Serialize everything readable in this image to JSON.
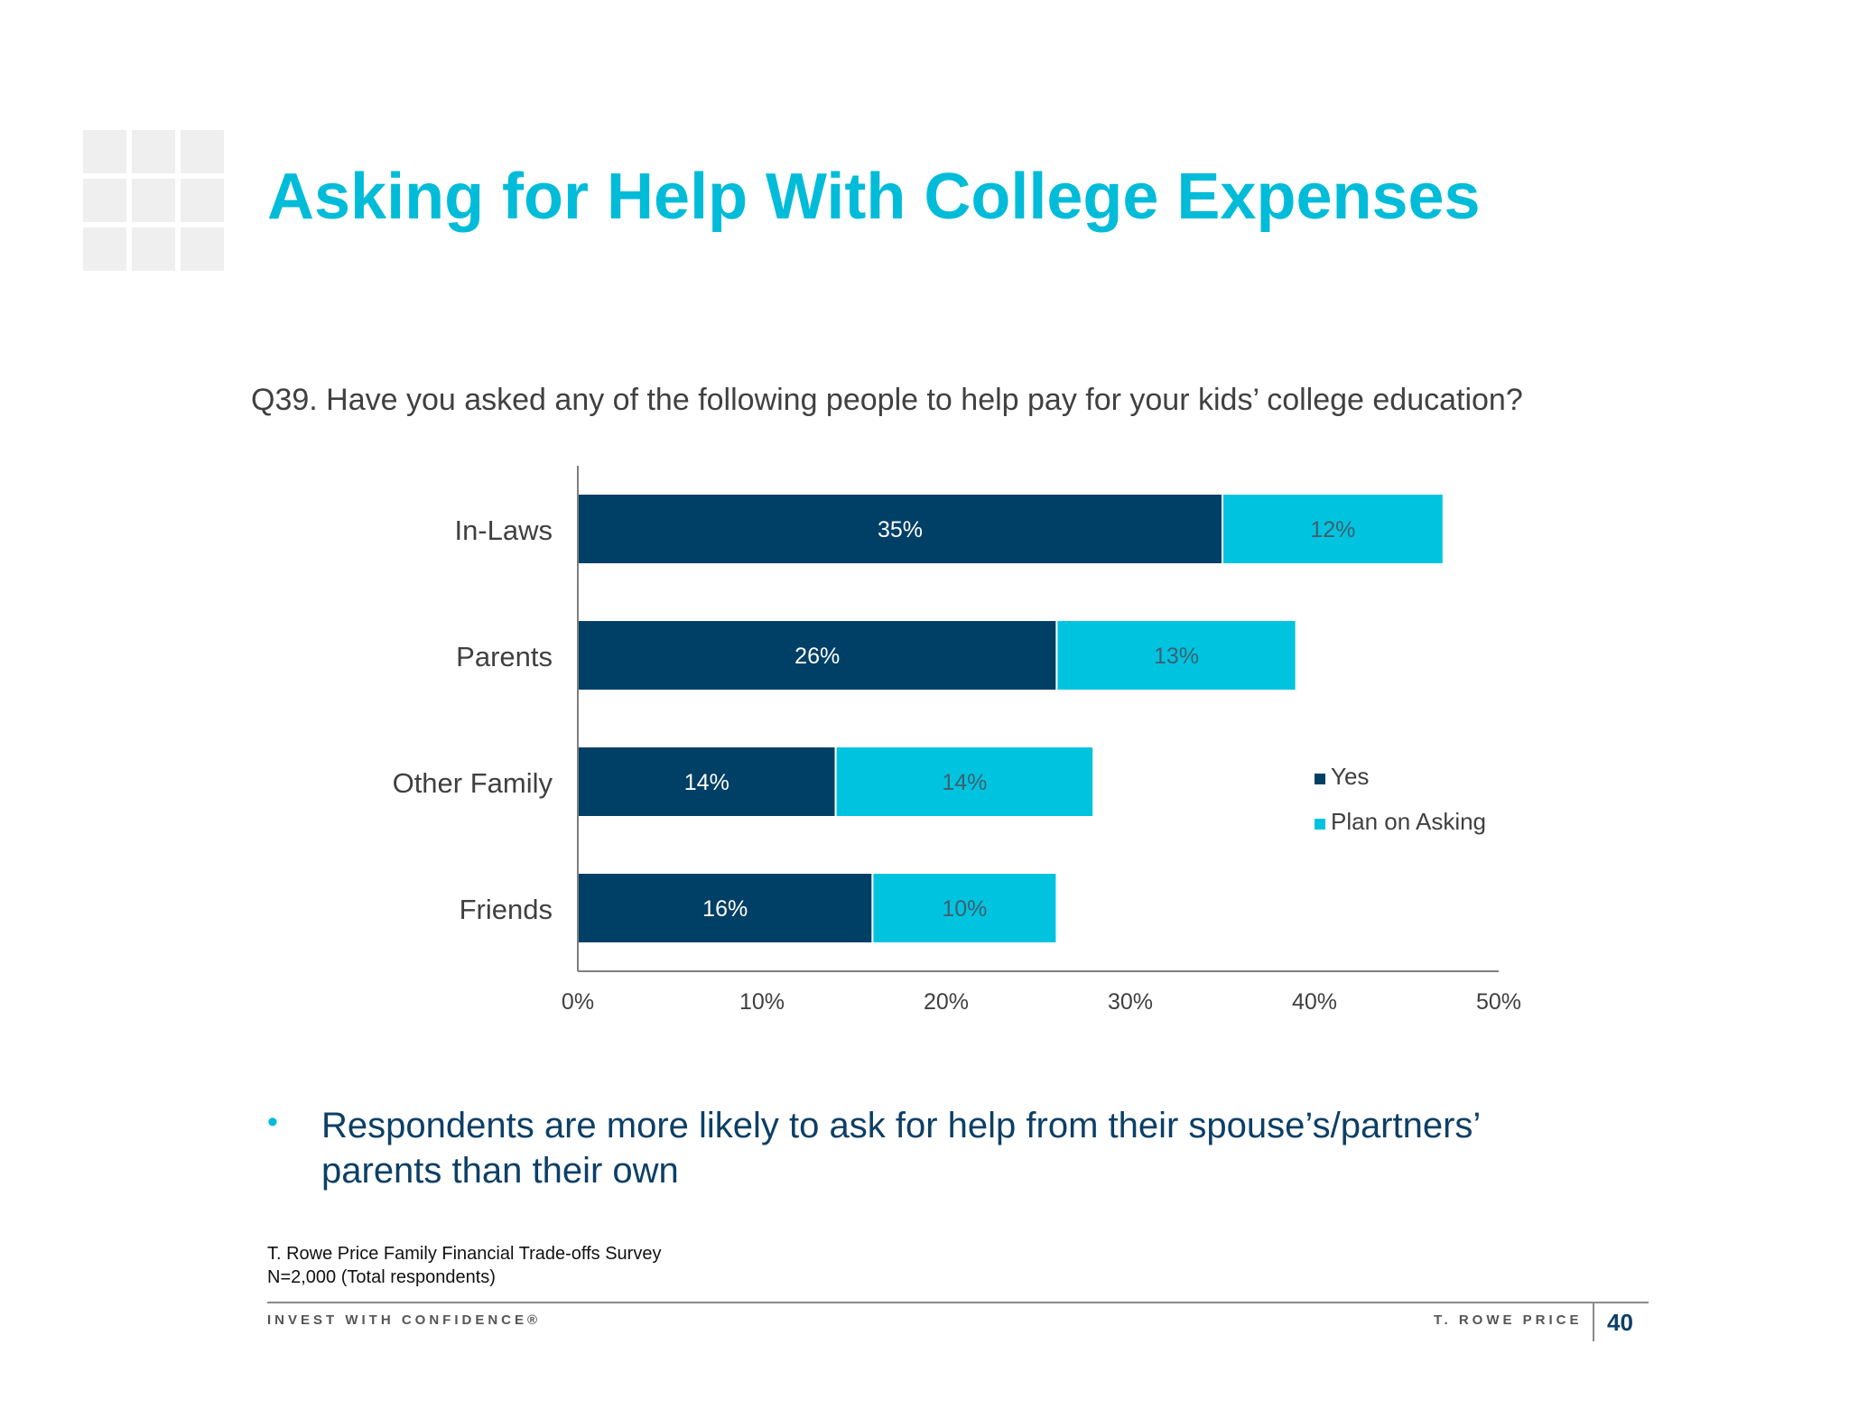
{
  "slide": {
    "title": "Asking for Help With College Expenses",
    "question": "Q39. Have you asked any of the following people to help pay for your kids’ college education?",
    "bullet": "Respondents are more likely to ask for help from their spouse’s/partners’ parents than their own",
    "source_line1": "T. Rowe Price Family Financial Trade-offs Survey",
    "source_line2": "N=2,000 (Total respondents)",
    "footer_left": "INVEST WITH CONFIDENCE®",
    "footer_right": "T. ROWE PRICE",
    "page_number": "40"
  },
  "colors": {
    "title": "#00bcd9",
    "yes": "#003f66",
    "plan": "#00c4df",
    "text_dark": "#0d3f66"
  },
  "chart_data": {
    "type": "bar",
    "orientation": "horizontal",
    "stacked": true,
    "categories": [
      "In-Laws",
      "Parents",
      "Other Family",
      "Friends"
    ],
    "series": [
      {
        "name": "Yes",
        "values": [
          35,
          26,
          14,
          16
        ],
        "labels": [
          "35%",
          "26%",
          "14%",
          "16%"
        ]
      },
      {
        "name": "Plan on Asking",
        "values": [
          12,
          13,
          14,
          10
        ],
        "labels": [
          "12%",
          "13%",
          "14%",
          "10%"
        ]
      }
    ],
    "xlim": [
      0,
      50
    ],
    "xticks": [
      0,
      10,
      20,
      30,
      40,
      50
    ],
    "xtick_labels": [
      "0%",
      "10%",
      "20%",
      "30%",
      "40%",
      "50%"
    ],
    "grid": false,
    "legend_position": "right"
  }
}
